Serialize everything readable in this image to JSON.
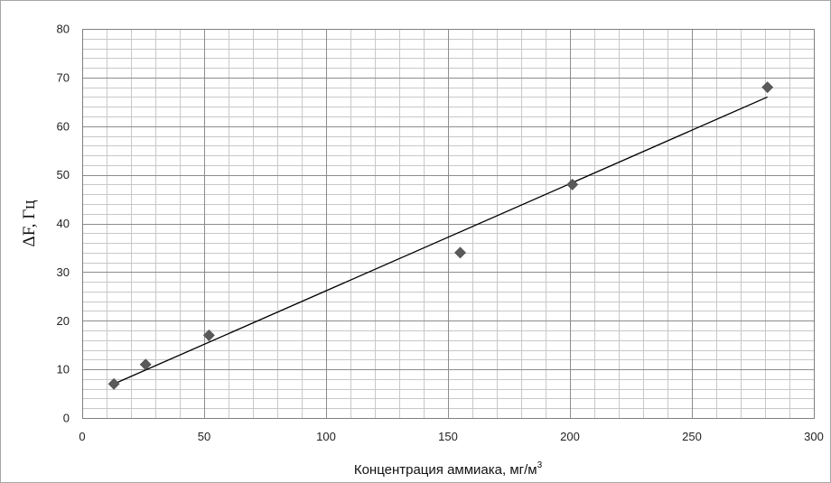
{
  "chart_data": {
    "type": "scatter",
    "title": "",
    "xlabel": "Концентрация аммиака, мг/м",
    "xlabel_superscript": "3",
    "ylabel": "ΔF, Гц",
    "xlim": [
      0,
      300
    ],
    "ylim": [
      0,
      80
    ],
    "x_major_ticks": [
      0,
      50,
      100,
      150,
      200,
      250,
      300
    ],
    "y_major_ticks": [
      0,
      10,
      20,
      30,
      40,
      50,
      60,
      70,
      80
    ],
    "x_minor_step": 10,
    "y_minor_step": 2,
    "grid": true,
    "legend": "none",
    "marker": "diamond",
    "series": [
      {
        "points": [
          {
            "x": 13,
            "y": 7
          },
          {
            "x": 26,
            "y": 11
          },
          {
            "x": 52,
            "y": 17
          },
          {
            "x": 155,
            "y": 34
          },
          {
            "x": 201,
            "y": 48
          },
          {
            "x": 281,
            "y": 68
          }
        ]
      }
    ],
    "trendline": {
      "type": "linear",
      "from": {
        "x": 13,
        "y": 7
      },
      "to": {
        "x": 281,
        "y": 66
      }
    }
  },
  "colors": {
    "marker": "#5a5a5a",
    "trendline": "#000000",
    "major_grid": "#8c8c8c",
    "minor_grid": "#c8c8c8",
    "frame": "#808080"
  }
}
